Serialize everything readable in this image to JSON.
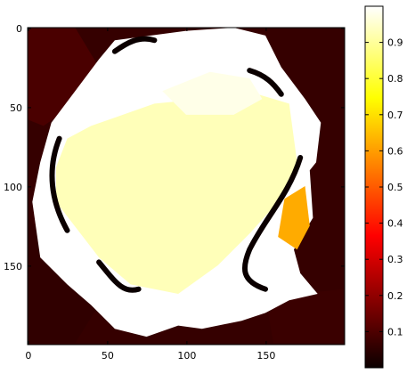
{
  "chart_data": {
    "type": "heatmap",
    "colormap": "hot",
    "grid": false,
    "image_shape": {
      "rows": 200,
      "cols": 200
    },
    "xlim": [
      0,
      199
    ],
    "ylim": [
      199,
      0
    ],
    "x_tick_labels": [
      "0",
      "50",
      "100",
      "150"
    ],
    "x_tick_values": [
      0,
      50,
      100,
      150
    ],
    "y_tick_labels": [
      "0",
      "50",
      "100",
      "150"
    ],
    "y_tick_values": [
      0,
      50,
      100,
      150
    ],
    "colorbar": {
      "range": [
        0,
        1
      ],
      "tick_values": [
        0.1,
        0.2,
        0.3,
        0.4,
        0.5,
        0.6,
        0.7,
        0.8,
        0.9
      ],
      "tick_labels": [
        "0.1",
        "0.2",
        "0.3",
        "0.4",
        "0.5",
        "0.6",
        "0.7",
        "0.8",
        "0.9"
      ]
    },
    "regions": [
      {
        "name": "central-blob",
        "value": 0.93
      },
      {
        "name": "bright-rim",
        "value": 1.0
      },
      {
        "name": "right-orange-patch",
        "value": 0.62
      },
      {
        "name": "background-dark",
        "value": 0.06
      },
      {
        "name": "shadow-band",
        "value": 0.0
      }
    ]
  }
}
